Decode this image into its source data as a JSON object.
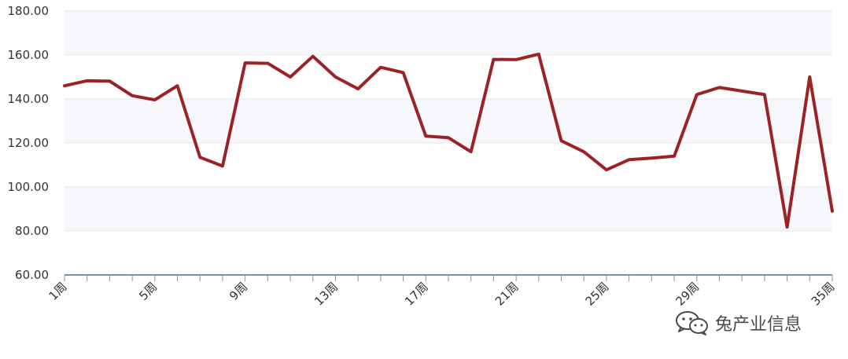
{
  "chart_data": {
    "type": "area",
    "categories": [
      "1周",
      "2周",
      "3周",
      "4周",
      "5周",
      "6周",
      "7周",
      "8周",
      "9周",
      "10周",
      "11周",
      "12周",
      "13周",
      "14周",
      "15周",
      "16周",
      "17周",
      "18周",
      "19周",
      "20周",
      "21周",
      "22周",
      "23周",
      "24周",
      "25周",
      "26周",
      "27周",
      "28周",
      "29周",
      "30周",
      "31周",
      "32周",
      "33周",
      "34周",
      "35周"
    ],
    "x_tick_labels": [
      "1周",
      "5周",
      "9周",
      "13周",
      "17周",
      "21周",
      "25周",
      "29周",
      "35周"
    ],
    "series": [
      {
        "values": [
          146,
          148.3,
          148.1,
          141.5,
          139.6,
          146,
          113.5,
          109.5,
          156.4,
          156.2,
          150,
          159.4,
          150,
          144.6,
          154.4,
          152,
          123.1,
          122.4,
          116,
          158,
          157.9,
          160.4,
          121,
          116,
          107.8,
          112.4,
          113.1,
          114,
          142,
          145.2,
          143.6,
          142,
          81.8,
          150,
          89
        ]
      }
    ],
    "ylim": [
      60,
      180
    ],
    "y_ticks": [
      60,
      80,
      100,
      120,
      140,
      160,
      180
    ],
    "y_tick_format": "2 decimals",
    "grid": true,
    "legend": "none",
    "title": "",
    "xlabel": "",
    "ylabel": "",
    "colors": {
      "line": "#9b2326",
      "band": "#f7f8fc",
      "grid": "#e4e7f0",
      "axis": "#7f94a4"
    }
  },
  "watermark": {
    "icon": "wechat-icon",
    "text": "兔产业信息"
  }
}
